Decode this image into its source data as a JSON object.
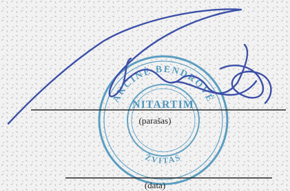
{
  "stamp": {
    "top_arc": "AKCINĖ BENDROVĖ",
    "center": "NITARTIM",
    "bottom_arc": "ŽVITAS"
  },
  "fields": {
    "signature_label": "(parašas)",
    "date_label": "(data)"
  }
}
